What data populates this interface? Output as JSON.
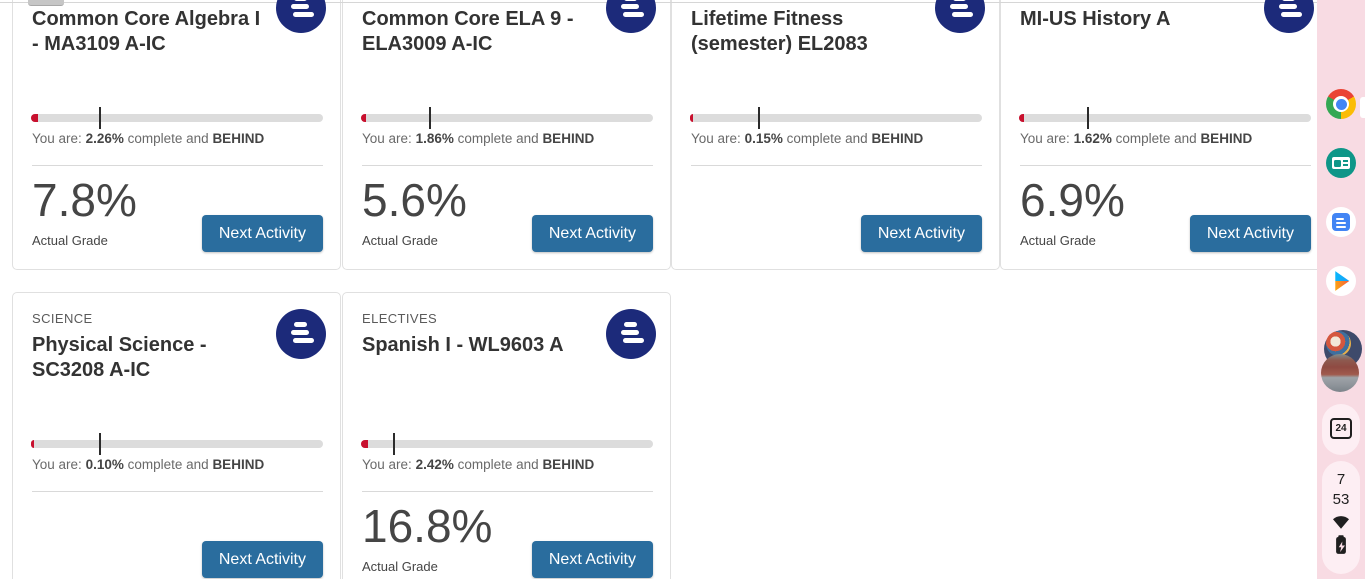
{
  "labels": {
    "you_are_prefix": "You are:",
    "complete_conjunction": "complete and"
  },
  "cards": [
    {
      "category": "",
      "title": "Common Core Algebra I - MA3109 A-IC",
      "complete_percent": "2.26%",
      "status": "BEHIND",
      "grade": "7.8%",
      "grade_label": "Actual Grade",
      "button_label": "Next Activity",
      "progress": {
        "complete": 2.26,
        "target": 23.4
      }
    },
    {
      "category": "",
      "title": "Common Core ELA 9 - ELA3009 A-IC",
      "complete_percent": "1.86%",
      "status": "BEHIND",
      "grade": "5.6%",
      "grade_label": "Actual Grade",
      "button_label": "Next Activity",
      "progress": {
        "complete": 1.86,
        "target": 23.4
      }
    },
    {
      "category": "",
      "title": "Lifetime Fitness (semester) EL2083",
      "complete_percent": "0.15%",
      "status": "BEHIND",
      "grade": null,
      "grade_label": null,
      "button_label": "Next Activity",
      "progress": {
        "complete": 0.15,
        "target": 23.4
      }
    },
    {
      "category": "",
      "title": "MI-US History A",
      "complete_percent": "1.62%",
      "status": "BEHIND",
      "grade": "6.9%",
      "grade_label": "Actual Grade",
      "button_label": "Next Activity",
      "progress": {
        "complete": 1.62,
        "target": 23.4
      }
    },
    {
      "category": "SCIENCE",
      "title": "Physical Science - SC3208 A-IC",
      "complete_percent": "0.10%",
      "status": "BEHIND",
      "grade": null,
      "grade_label": null,
      "button_label": "Next Activity",
      "progress": {
        "complete": 0.1,
        "target": 23.4
      }
    },
    {
      "category": "ELECTIVES",
      "title": "Spanish I - WL9603 A",
      "complete_percent": "2.42%",
      "status": "BEHIND",
      "grade": "16.8%",
      "grade_label": "Actual Grade",
      "button_label": "Next Activity",
      "progress": {
        "complete": 2.42,
        "target": 11.0
      }
    }
  ],
  "shelf": {
    "calendar_day": "24",
    "clock_hour": "7",
    "clock_minute": "53",
    "app_icons": [
      "chrome-icon",
      "contact-card-app-icon",
      "docs-app-icon",
      "play-store-icon"
    ],
    "status_icons": [
      "wifi-icon",
      "battery-charging-icon"
    ]
  },
  "colors": {
    "logo_navy": "#1c2a7a",
    "button_blue": "#2a6d9e",
    "progress_red": "#c8102e",
    "shelf_pink": "#f8dbe3",
    "status_dark": "#1f1f1f"
  }
}
